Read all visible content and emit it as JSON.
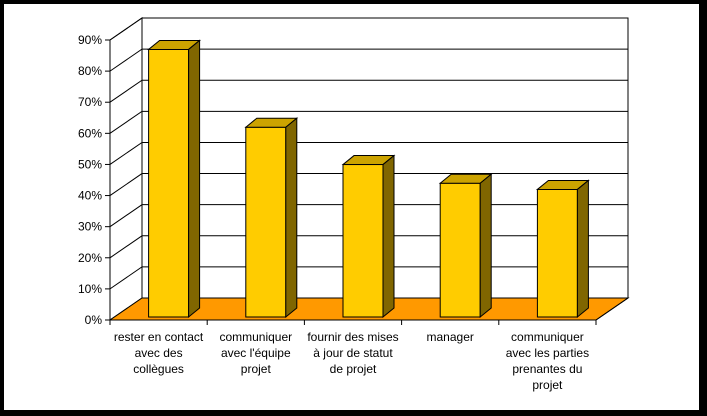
{
  "chart_data": {
    "type": "bar",
    "title": "",
    "xlabel": "",
    "ylabel": "",
    "ylim": [
      0,
      90
    ],
    "yticks": [
      "0%",
      "10%",
      "20%",
      "30%",
      "40%",
      "50%",
      "60%",
      "70%",
      "80%",
      "90%"
    ],
    "categories": [
      [
        "rester en contact",
        "avec des",
        "collègues"
      ],
      [
        "communiquer",
        "avec l'équipe",
        "projet"
      ],
      [
        "fournir des mises",
        "à jour de statut",
        "de projet"
      ],
      [
        "manager"
      ],
      [
        "communiquer",
        "avec les parties",
        "prenantes du",
        "projet"
      ]
    ],
    "values": [
      86,
      61,
      49,
      43,
      41
    ],
    "grid": true,
    "legend": "none",
    "colors": {
      "bar_front": "#FFCC00",
      "bar_top": "#CCA300",
      "bar_side": "#806600",
      "floor": "#FF9900",
      "wall": "#FFFFFF",
      "background": "#FFFFFF",
      "outer_border": "#000000"
    }
  }
}
